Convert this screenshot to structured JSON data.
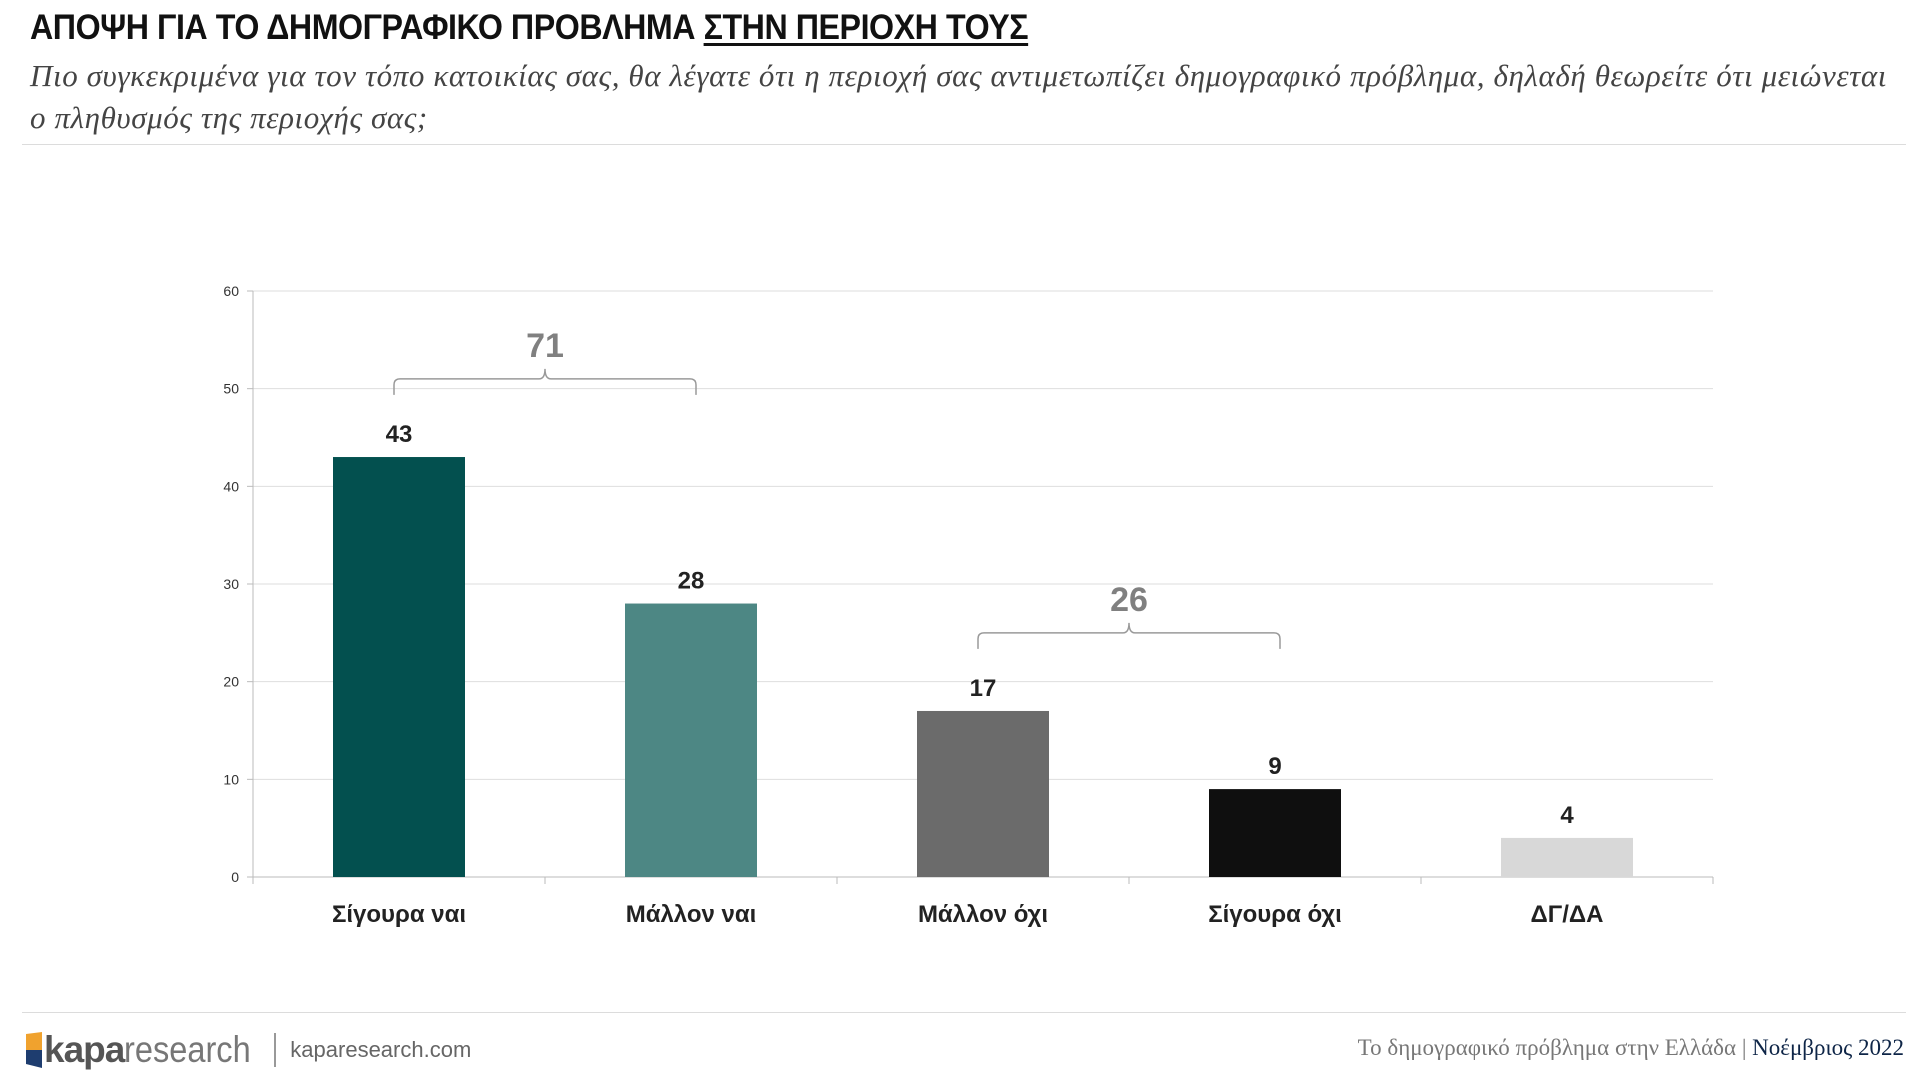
{
  "header": {
    "title_part1": "ΑΠΟΨΗ ΓΙΑ ΤΟ ΔΗΜΟΓΡΑΦΙΚΟ ΠΡΟΒΛΗΜΑ",
    "title_part2": "ΣΤΗΝ ΠΕΡΙΟΧΗ ΤΟΥΣ",
    "subtitle": "Πιο συγκεκριμένα για τον τόπο κατοικίας σας, θα λέγατε ότι η περιοχή σας αντιμετωπίζει δημογραφικό πρόβλημα, δηλαδή θεωρείτε ότι μειώνεται ο πληθυσμός της περιοχής σας;"
  },
  "chart_data": {
    "type": "bar",
    "categories": [
      "Σίγουρα ναι",
      "Μάλλον ναι",
      "Μάλλον όχι",
      "Σίγουρα όχι",
      "ΔΓ/ΔΑ"
    ],
    "values": [
      43,
      28,
      17,
      9,
      4
    ],
    "colors": [
      "#03504f",
      "#4d8784",
      "#6b6b6b",
      "#0f0f0f",
      "#d8d8d8"
    ],
    "yticks": [
      0,
      10,
      20,
      30,
      40,
      50,
      60
    ],
    "ylim": [
      0,
      60
    ],
    "grid": true,
    "data_labels": true,
    "group_brackets": [
      {
        "label": "71",
        "from_category": 0,
        "to_category": 1,
        "level": 51
      },
      {
        "label": "26",
        "from_category": 2,
        "to_category": 3,
        "level": 25
      }
    ]
  },
  "footer": {
    "logo_bold": "kapa",
    "logo_light": "research",
    "url": "kaparesearch.com",
    "report": "Το δημογραφικό πρόβλημα στην Ελλάδα",
    "separator": "|",
    "date": "Νοέμβριος 2022"
  },
  "colors": {
    "logo_orange": "#f0a22e",
    "logo_navy": "#1e3d6f",
    "date_navy": "#0e2547"
  }
}
